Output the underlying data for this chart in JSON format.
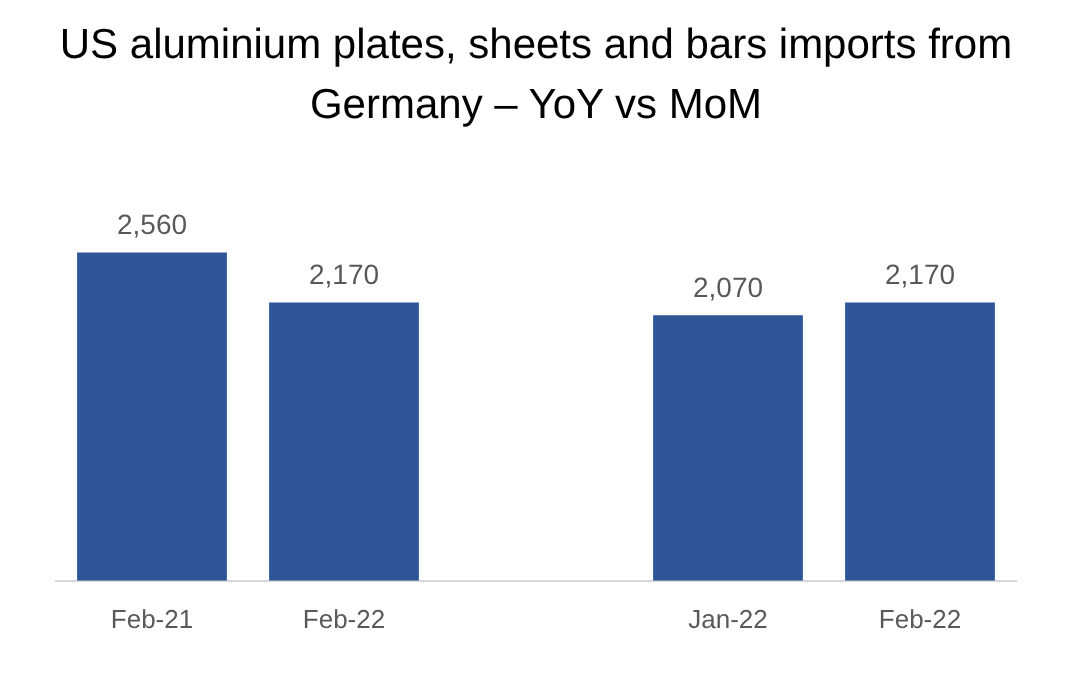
{
  "chart_data": {
    "type": "bar",
    "title": "US aluminium plates, sheets and bars imports from Germany – YoY vs MoM",
    "categories": [
      "Feb-21",
      "Feb-22",
      null,
      "Jan-22",
      "Feb-22"
    ],
    "values": [
      2560,
      2170,
      null,
      2070,
      2170
    ],
    "color": "#2f5597",
    "data_labels": true,
    "value_labels": [
      "2,560",
      "2,170",
      null,
      "2,070",
      "2,170"
    ],
    "grid": false,
    "legend": false
  }
}
